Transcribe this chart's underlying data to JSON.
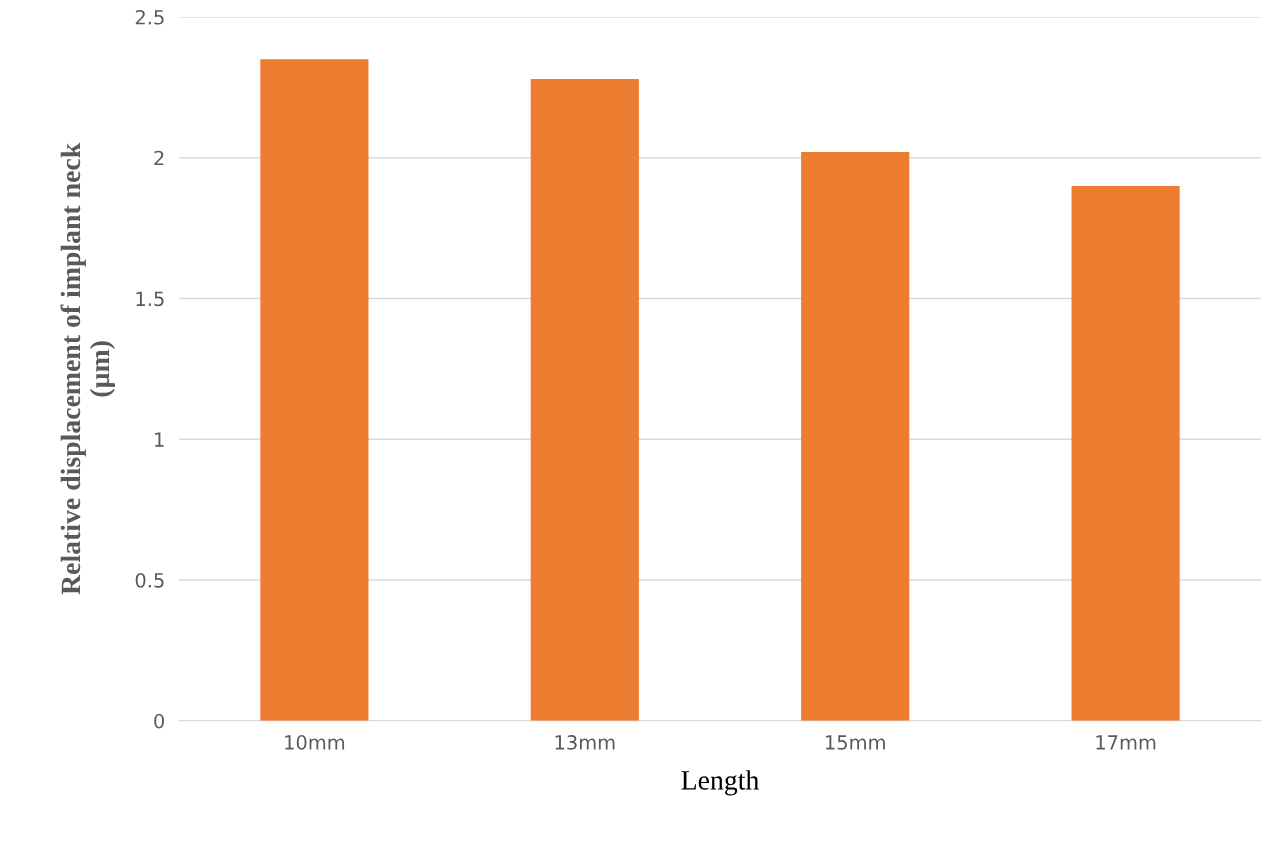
{
  "chart_data": {
    "type": "bar",
    "xlabel": "Length",
    "ylabel": "Relative displacement of implant neck\n(µm)",
    "categories": [
      "10mm",
      "13mm",
      "15mm",
      "17mm"
    ],
    "values": [
      2.35,
      2.28,
      2.02,
      1.9
    ],
    "color": "#ed7d31",
    "ylim": [
      0,
      2.5
    ],
    "yticks": [
      0,
      0.5,
      1,
      1.5,
      2,
      2.5
    ],
    "grid": "y"
  }
}
